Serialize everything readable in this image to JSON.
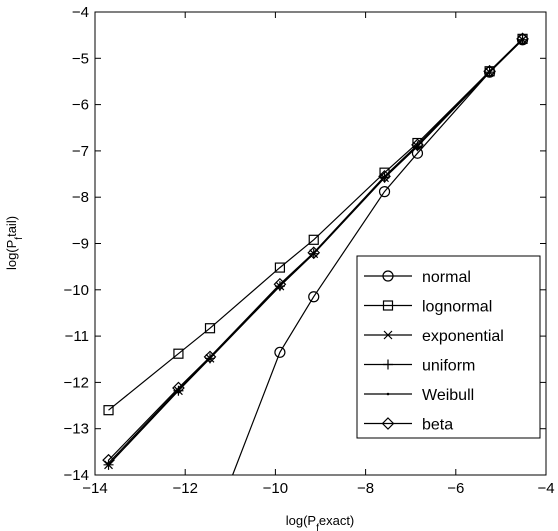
{
  "chart_data": {
    "type": "line",
    "title": "",
    "xlabel": "log(P_f exact)",
    "ylabel": "log(P_f tail)",
    "xlim": [
      -14,
      -4
    ],
    "ylim": [
      -14,
      -4
    ],
    "xticks": [
      -14,
      -12,
      -10,
      -8,
      -6,
      -4
    ],
    "yticks": [
      -14,
      -13,
      -12,
      -11,
      -10,
      -9,
      -8,
      -7,
      -6,
      -5,
      -4
    ],
    "grid": false,
    "legend_position": "bottom-right",
    "line_color": "#000000",
    "series": [
      {
        "name": "normal",
        "marker": "circle",
        "x": [
          -10.95,
          -9.9,
          -9.15,
          -7.58,
          -6.85,
          -5.25,
          -4.52
        ],
        "y": [
          -14.0,
          -11.35,
          -10.15,
          -7.88,
          -7.05,
          -5.3,
          -4.6
        ]
      },
      {
        "name": "lognormal",
        "marker": "square",
        "x": [
          -13.7,
          -12.15,
          -11.45,
          -9.9,
          -9.15,
          -7.58,
          -6.85,
          -5.25,
          -4.52
        ],
        "y": [
          -12.6,
          -11.38,
          -10.83,
          -9.52,
          -8.92,
          -7.47,
          -6.83,
          -5.28,
          -4.58
        ]
      },
      {
        "name": "exponential",
        "marker": "x",
        "x": [
          -13.7,
          -12.15,
          -11.45,
          -9.9,
          -9.15,
          -7.58,
          -6.85,
          -5.25,
          -4.52
        ],
        "y": [
          -13.78,
          -12.18,
          -11.48,
          -9.92,
          -9.22,
          -7.58,
          -6.9,
          -5.3,
          -4.6
        ]
      },
      {
        "name": "uniform",
        "marker": "plus",
        "x": [
          -13.7,
          -12.15,
          -11.45,
          -9.9,
          -9.15,
          -7.58,
          -6.85,
          -5.25,
          -4.52
        ],
        "y": [
          -13.78,
          -12.18,
          -11.48,
          -9.92,
          -9.22,
          -7.58,
          -6.9,
          -5.3,
          -4.6
        ]
      },
      {
        "name": "Weibull",
        "marker": "dot",
        "x": [
          -13.7,
          -12.15,
          -11.45,
          -9.9,
          -9.15,
          -7.58,
          -6.85,
          -5.25,
          -4.52
        ],
        "y": [
          -13.74,
          -12.15,
          -11.46,
          -9.9,
          -9.2,
          -7.56,
          -6.88,
          -5.28,
          -4.58
        ]
      },
      {
        "name": "beta",
        "marker": "diamond",
        "x": [
          -13.7,
          -12.15,
          -11.45,
          -9.9,
          -9.15,
          -7.58,
          -6.85,
          -5.25,
          -4.52
        ],
        "y": [
          -13.68,
          -12.12,
          -11.45,
          -9.88,
          -9.2,
          -7.55,
          -6.87,
          -5.28,
          -4.58
        ]
      }
    ]
  }
}
